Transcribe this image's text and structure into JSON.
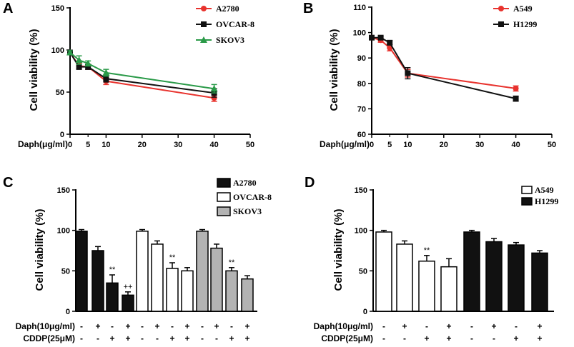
{
  "chart_data": [
    {
      "id": "A",
      "panel_label": "A",
      "type": "line",
      "ylabel": "Cell viability (%)",
      "xlabel": "Daph(μg/ml)",
      "xlim": [
        0,
        50
      ],
      "ylim": [
        0,
        150
      ],
      "xticks": [
        "0",
        "10",
        "20",
        "30",
        "40",
        "50"
      ],
      "xtick_values": [
        0,
        10,
        20,
        30,
        40,
        50
      ],
      "yticks": [
        "0",
        "50",
        "100",
        "150"
      ],
      "ytick_values": [
        0,
        50,
        100,
        150
      ],
      "minor_xticks": [
        5
      ],
      "legend_position": "top-right",
      "series": [
        {
          "name": "A2780",
          "color": "#e8332e",
          "marker": "circle",
          "x": [
            0,
            2.5,
            5,
            10,
            40
          ],
          "y": [
            97,
            81,
            80,
            63,
            43
          ],
          "err": [
            2,
            3,
            3,
            4,
            4
          ]
        },
        {
          "name": "OVCAR-8",
          "color": "#111111",
          "marker": "square",
          "x": [
            0,
            2.5,
            5,
            10,
            40
          ],
          "y": [
            97,
            80,
            80,
            66,
            49
          ],
          "err": [
            2,
            3,
            3,
            4,
            5
          ]
        },
        {
          "name": "SKOV3",
          "color": "#2a9a48",
          "marker": "triangle",
          "x": [
            0,
            2.5,
            5,
            10,
            40
          ],
          "y": [
            97,
            88,
            84,
            73,
            54
          ],
          "err": [
            2,
            5,
            3,
            4,
            5
          ]
        }
      ]
    },
    {
      "id": "B",
      "panel_label": "B",
      "type": "line",
      "ylabel": "Cell viability (%)",
      "xlabel": "Daph(μg/ml)",
      "xlim": [
        0,
        50
      ],
      "ylim": [
        60,
        110
      ],
      "xticks": [
        "0",
        "10",
        "20",
        "30",
        "40",
        "50"
      ],
      "xtick_values": [
        0,
        10,
        20,
        30,
        40,
        50
      ],
      "yticks": [
        "60",
        "70",
        "80",
        "90",
        "100",
        "110"
      ],
      "ytick_values": [
        60,
        70,
        80,
        90,
        100,
        110
      ],
      "minor_xticks": [
        5
      ],
      "legend_position": "top-right",
      "series": [
        {
          "name": "A549",
          "color": "#e8332e",
          "marker": "circle",
          "x": [
            0,
            2.5,
            5,
            10,
            40
          ],
          "y": [
            98,
            97,
            94,
            84,
            78
          ],
          "err": [
            0.5,
            0.8,
            1.2,
            1.5,
            1.0
          ]
        },
        {
          "name": "H1299",
          "color": "#111111",
          "marker": "square",
          "x": [
            0,
            2.5,
            5,
            10,
            40
          ],
          "y": [
            98,
            98,
            96,
            84,
            74
          ],
          "err": [
            0.5,
            0.5,
            0.8,
            2.2,
            1.0
          ]
        }
      ]
    },
    {
      "id": "C",
      "panel_label": "C",
      "type": "bar",
      "ylabel": "Cell viability (%)",
      "ylim": [
        0,
        150
      ],
      "yticks": [
        "0",
        "50",
        "100",
        "150"
      ],
      "ytick_values": [
        0,
        50,
        100,
        150
      ],
      "legend_position": "top-right",
      "condition_rows": [
        {
          "label": "Daph(10μg/ml)",
          "values": [
            "-",
            "+",
            "-",
            "+",
            "-",
            "+",
            "-",
            "+",
            "-",
            "+",
            "-",
            "+"
          ]
        },
        {
          "label": "CDDP(25μM)",
          "values": [
            "-",
            "-",
            "+",
            "+",
            "-",
            "-",
            "+",
            "+",
            "-",
            "-",
            "+",
            "+"
          ]
        }
      ],
      "series": [
        {
          "name": "A2780",
          "fill": "#111111",
          "values": [
            99,
            75,
            35,
            20
          ],
          "err": [
            2,
            5,
            10,
            4
          ],
          "annotations": [
            "",
            "",
            "**",
            "++"
          ]
        },
        {
          "name": "OVCAR-8",
          "fill": "#ffffff",
          "values": [
            99,
            83,
            53,
            50
          ],
          "err": [
            2,
            4,
            7,
            4
          ],
          "annotations": [
            "",
            "",
            "**",
            ""
          ]
        },
        {
          "name": "SKOV3",
          "fill": "#b3b3b3",
          "values": [
            99,
            78,
            50,
            40
          ],
          "err": [
            2,
            5,
            4,
            4
          ],
          "annotations": [
            "",
            "",
            "**",
            ""
          ]
        }
      ]
    },
    {
      "id": "D",
      "panel_label": "D",
      "type": "bar",
      "ylabel": "Cell viability (%)",
      "ylim": [
        0,
        150
      ],
      "yticks": [
        "0",
        "50",
        "100",
        "150"
      ],
      "ytick_values": [
        0,
        50,
        100,
        150
      ],
      "legend_position": "top-right",
      "condition_rows": [
        {
          "label": "Daph(10μg/ml)",
          "values": [
            "-",
            "+",
            "-",
            "+",
            "-",
            "+",
            "-",
            "+"
          ]
        },
        {
          "label": "CDDP(25μM)",
          "values": [
            "-",
            "-",
            "+",
            "+",
            "-",
            "-",
            "+",
            "+"
          ]
        }
      ],
      "series": [
        {
          "name": "A549",
          "fill": "#ffffff",
          "values": [
            98,
            83,
            62,
            55
          ],
          "err": [
            2,
            4,
            7,
            10
          ],
          "annotations": [
            "",
            "",
            "**",
            ""
          ]
        },
        {
          "name": "H1299",
          "fill": "#111111",
          "values": [
            98,
            86,
            82,
            72
          ],
          "err": [
            2,
            4,
            3,
            3
          ],
          "annotations": [
            "",
            "",
            "",
            ""
          ]
        }
      ]
    }
  ]
}
